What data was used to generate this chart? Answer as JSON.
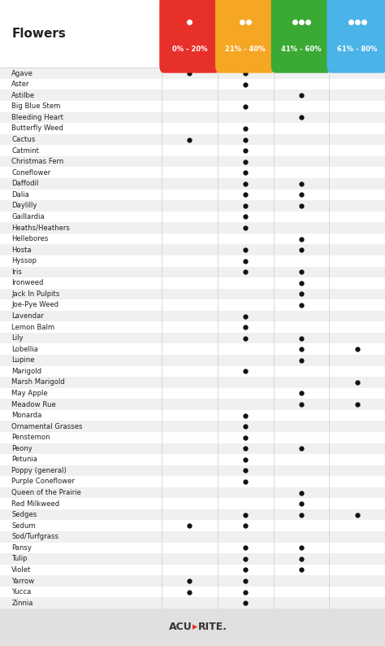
{
  "title": "Flowers",
  "columns": [
    "0% - 20%",
    "21% - 40%",
    "41% - 60%",
    "61% - 80%"
  ],
  "col_colors": [
    "#e8302a",
    "#f5a623",
    "#3aaa35",
    "#4ab3e8"
  ],
  "flowers": [
    "Agave",
    "Aster",
    "Astilbe",
    "Big Blue Stem",
    "Bleeding Heart",
    "Butterfly Weed",
    "Cactus",
    "Catmint",
    "Christmas Fern",
    "Coneflower",
    "Daffodil",
    "Dalia",
    "Daylilly",
    "Gaillardia",
    "Heaths/Heathers",
    "Hellebores",
    "Hosta",
    "Hyssop",
    "Iris",
    "Ironweed",
    "Jack In Pulpits",
    "Joe-Pye Weed",
    "Lavendar",
    "Lemon Balm",
    "Lily",
    "Lobellia",
    "Lupine",
    "Marigold",
    "Marsh Marigold",
    "May Apple",
    "Meadow Rue",
    "Monarda",
    "Ornamental Grasses",
    "Penstemon",
    "Peony",
    "Petunia",
    "Poppy (general)",
    "Purple Coneflower",
    "Queen of the Prairie",
    "Red Milkweed",
    "Sedges",
    "Sedum",
    "Sod/Turfgrass",
    "Pansy",
    "Tulip",
    "Violet",
    "Yarrow",
    "Yucca",
    "Zinnia"
  ],
  "dots": {
    "Agave": [
      1,
      1,
      0,
      0
    ],
    "Aster": [
      0,
      1,
      0,
      0
    ],
    "Astilbe": [
      0,
      0,
      1,
      0
    ],
    "Big Blue Stem": [
      0,
      1,
      0,
      0
    ],
    "Bleeding Heart": [
      0,
      0,
      1,
      0
    ],
    "Butterfly Weed": [
      0,
      1,
      0,
      0
    ],
    "Cactus": [
      1,
      1,
      0,
      0
    ],
    "Catmint": [
      0,
      1,
      0,
      0
    ],
    "Christmas Fern": [
      0,
      1,
      0,
      0
    ],
    "Coneflower": [
      0,
      1,
      0,
      0
    ],
    "Daffodil": [
      0,
      1,
      1,
      0
    ],
    "Dalia": [
      0,
      1,
      1,
      0
    ],
    "Daylilly": [
      0,
      1,
      1,
      0
    ],
    "Gaillardia": [
      0,
      1,
      0,
      0
    ],
    "Heaths/Heathers": [
      0,
      1,
      0,
      0
    ],
    "Hellebores": [
      0,
      0,
      1,
      0
    ],
    "Hosta": [
      0,
      1,
      1,
      0
    ],
    "Hyssop": [
      0,
      1,
      0,
      0
    ],
    "Iris": [
      0,
      1,
      1,
      0
    ],
    "Ironweed": [
      0,
      0,
      1,
      0
    ],
    "Jack In Pulpits": [
      0,
      0,
      1,
      0
    ],
    "Joe-Pye Weed": [
      0,
      0,
      1,
      0
    ],
    "Lavendar": [
      0,
      1,
      0,
      0
    ],
    "Lemon Balm": [
      0,
      1,
      0,
      0
    ],
    "Lily": [
      0,
      1,
      1,
      0
    ],
    "Lobellia": [
      0,
      0,
      1,
      1
    ],
    "Lupine": [
      0,
      0,
      1,
      0
    ],
    "Marigold": [
      0,
      1,
      0,
      0
    ],
    "Marsh Marigold": [
      0,
      0,
      0,
      1
    ],
    "May Apple": [
      0,
      0,
      1,
      0
    ],
    "Meadow Rue": [
      0,
      0,
      1,
      1
    ],
    "Monarda": [
      0,
      1,
      0,
      0
    ],
    "Ornamental Grasses": [
      0,
      1,
      0,
      0
    ],
    "Penstemon": [
      0,
      1,
      0,
      0
    ],
    "Peony": [
      0,
      1,
      1,
      0
    ],
    "Petunia": [
      0,
      1,
      0,
      0
    ],
    "Poppy (general)": [
      0,
      1,
      0,
      0
    ],
    "Purple Coneflower": [
      0,
      1,
      0,
      0
    ],
    "Queen of the Prairie": [
      0,
      0,
      1,
      0
    ],
    "Red Milkweed": [
      0,
      0,
      1,
      0
    ],
    "Sedges": [
      0,
      1,
      1,
      1
    ],
    "Sedum": [
      1,
      1,
      0,
      0
    ],
    "Sod/Turfgrass": [
      0,
      0,
      0,
      0
    ],
    "Pansy": [
      0,
      1,
      1,
      0
    ],
    "Tulip": [
      0,
      1,
      1,
      0
    ],
    "Violet": [
      0,
      1,
      1,
      0
    ],
    "Yarrow": [
      1,
      1,
      0,
      0
    ],
    "Yucca": [
      1,
      1,
      0,
      0
    ],
    "Zinnia": [
      0,
      1,
      0,
      0
    ]
  },
  "bg_color": "#ffffff",
  "row_alt_color": "#f0f0f0",
  "dot_color": "#111111",
  "header_text_color": "#ffffff",
  "acurite_color": "#333333",
  "acurite_arrow_color": "#e8302a"
}
